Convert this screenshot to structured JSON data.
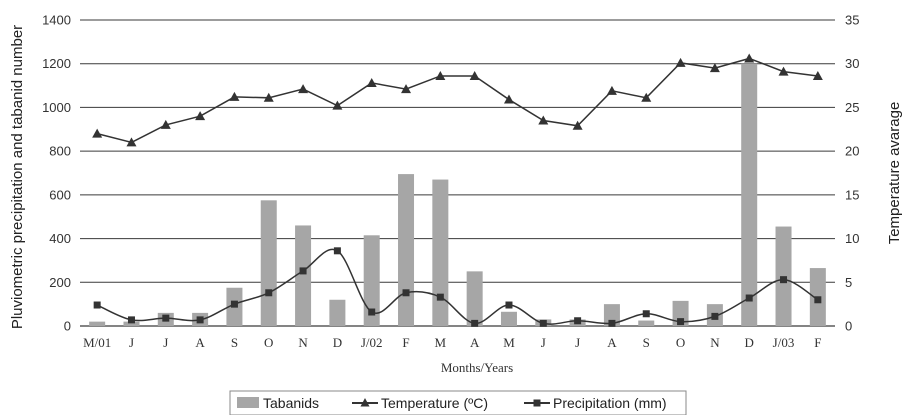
{
  "chart_data": {
    "type": "bar",
    "categories": [
      "M/01",
      "J",
      "J",
      "A",
      "S",
      "O",
      "N",
      "D",
      "J/02",
      "F",
      "M",
      "A",
      "M",
      "J",
      "J",
      "A",
      "S",
      "O",
      "N",
      "D",
      "J/03",
      "F"
    ],
    "x_tick_labels": [
      "M/01",
      "J",
      "J",
      "A",
      "S",
      "O",
      "N",
      "D",
      "J/02",
      "F",
      "M",
      "A",
      "M",
      "J",
      "J",
      "A",
      "S",
      "O",
      "N",
      "D",
      "J/03",
      "F"
    ],
    "xlabel": "Months/Years",
    "ylabel": "Pluviometric precipitation and tabanid number",
    "y2label": "Temperature avarage",
    "ylim": [
      0,
      1400
    ],
    "y2lim": [
      0,
      35
    ],
    "yticks": [
      0,
      200,
      400,
      600,
      800,
      1000,
      1200,
      1400
    ],
    "y2ticks": [
      0,
      5,
      10,
      15,
      20,
      25,
      30,
      35
    ],
    "grid": true,
    "legend_position": "bottom",
    "series": [
      {
        "name": "Tabanids",
        "type": "bar",
        "axis": "left",
        "color": "#a6a6a6",
        "values": [
          20,
          20,
          60,
          60,
          175,
          575,
          460,
          120,
          415,
          695,
          670,
          250,
          65,
          30,
          30,
          100,
          25,
          115,
          100,
          1200,
          455,
          265
        ]
      },
      {
        "name": "Temperature (ºC)",
        "type": "line",
        "axis": "right",
        "marker": "triangle",
        "color": "#333333",
        "values": [
          22.0,
          21.0,
          23.0,
          24.0,
          26.2,
          26.1,
          27.1,
          25.2,
          27.8,
          27.1,
          28.6,
          28.6,
          25.9,
          23.5,
          22.9,
          26.9,
          26.1,
          30.1,
          29.5,
          30.6,
          29.1,
          28.6
        ]
      },
      {
        "name": "Precipitation (mm)",
        "type": "line",
        "axis": "right",
        "marker": "square",
        "color": "#333333",
        "values": [
          2.4,
          0.7,
          0.9,
          0.7,
          2.5,
          3.8,
          6.3,
          8.6,
          1.6,
          3.8,
          3.3,
          0.3,
          2.4,
          0.3,
          0.6,
          0.3,
          1.4,
          0.5,
          1.1,
          3.2,
          5.3,
          3.0
        ]
      }
    ]
  }
}
